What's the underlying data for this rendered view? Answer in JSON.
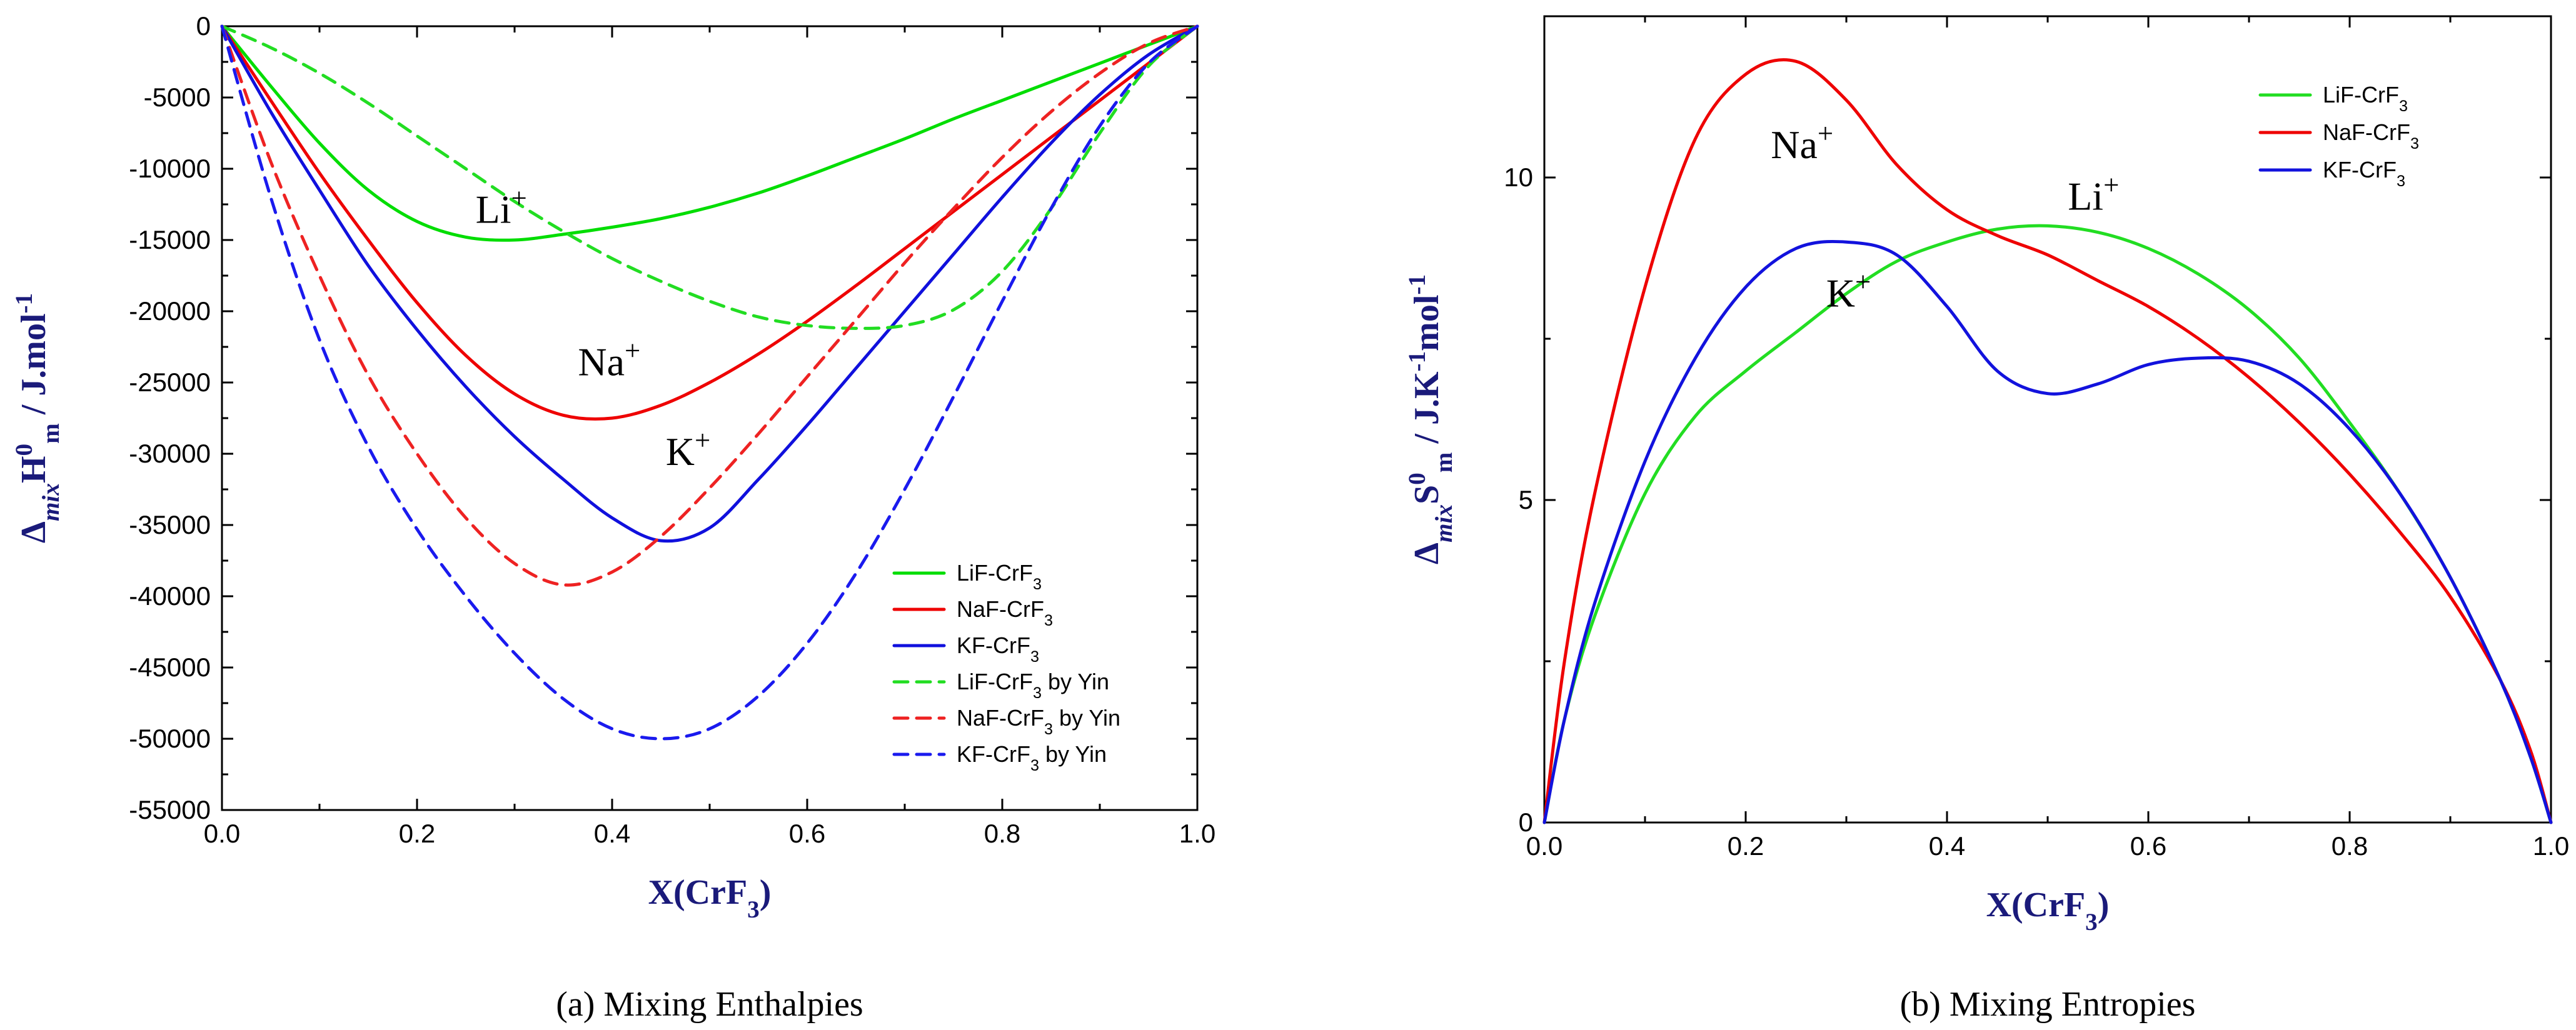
{
  "chart_data": [
    {
      "type": "line",
      "caption": "(a) Mixing Enthalpies",
      "xlabel": "X(CrF₃)",
      "ylabel": "Δ_mix H⁰_m / J.mol⁻¹",
      "xlim": [
        0.0,
        1.0
      ],
      "ylim": [
        -55000,
        0
      ],
      "xticks": [
        0.0,
        0.2,
        0.4,
        0.6,
        0.8,
        1.0
      ],
      "xtick_labels": [
        "0.0",
        "0.2",
        "0.4",
        "0.6",
        "0.8",
        "1.0"
      ],
      "yticks": [
        0,
        -5000,
        -10000,
        -15000,
        -20000,
        -25000,
        -30000,
        -35000,
        -40000,
        -45000,
        -50000,
        -55000
      ],
      "ytick_labels": [
        "0",
        "-5000",
        "-10000",
        "-15000",
        "-20000",
        "-25000",
        "-30000",
        "-35000",
        "-40000",
        "-45000",
        "-50000",
        "-55000"
      ],
      "legend_position": "bottom-right",
      "annotations": [
        {
          "text": "Li⁺",
          "x": 0.26,
          "y": -13800
        },
        {
          "text": "Na⁺",
          "x": 0.365,
          "y": -24500
        },
        {
          "text": "K⁺",
          "x": 0.455,
          "y": -30800
        }
      ],
      "series": [
        {
          "name": "LiF-CrF₃",
          "color": "#00dd00",
          "style": "solid",
          "x": [
            0,
            0.05,
            0.1,
            0.15,
            0.2,
            0.25,
            0.3,
            0.35,
            0.4,
            0.45,
            0.5,
            0.55,
            0.6,
            0.65,
            0.7,
            0.75,
            0.8,
            0.85,
            0.9,
            0.95,
            1.0
          ],
          "y": [
            0,
            -4200,
            -8200,
            -11500,
            -13700,
            -14800,
            -15000,
            -14600,
            -14100,
            -13500,
            -12700,
            -11700,
            -10500,
            -9200,
            -7900,
            -6500,
            -5200,
            -3900,
            -2600,
            -1300,
            0
          ]
        },
        {
          "name": "NaF-CrF₃",
          "color": "#ee0000",
          "style": "solid",
          "x": [
            0,
            0.05,
            0.1,
            0.15,
            0.2,
            0.25,
            0.3,
            0.35,
            0.4,
            0.45,
            0.5,
            0.55,
            0.6,
            0.65,
            0.7,
            0.75,
            0.8,
            0.85,
            0.9,
            0.95,
            1.0
          ],
          "y": [
            0,
            -5200,
            -10300,
            -15000,
            -19400,
            -23100,
            -25800,
            -27300,
            -27500,
            -26600,
            -25000,
            -23000,
            -20700,
            -18200,
            -15600,
            -13000,
            -10400,
            -7800,
            -5200,
            -2600,
            0
          ]
        },
        {
          "name": "KF-CrF₃",
          "color": "#1010dd",
          "style": "solid",
          "x": [
            0,
            0.05,
            0.1,
            0.15,
            0.2,
            0.25,
            0.3,
            0.35,
            0.4,
            0.45,
            0.5,
            0.55,
            0.6,
            0.65,
            0.7,
            0.75,
            0.8,
            0.85,
            0.9,
            0.95,
            1.0
          ],
          "y": [
            0,
            -6000,
            -11500,
            -16800,
            -21300,
            -25300,
            -28800,
            -31800,
            -34500,
            -36100,
            -35200,
            -31800,
            -28000,
            -24000,
            -20000,
            -16000,
            -12000,
            -8200,
            -4800,
            -2000,
            0
          ]
        },
        {
          "name": "LiF-CrF₃ by Yin",
          "color": "#22dd22",
          "style": "dashed",
          "x": [
            0,
            0.05,
            0.1,
            0.15,
            0.2,
            0.25,
            0.3,
            0.35,
            0.4,
            0.45,
            0.5,
            0.55,
            0.6,
            0.65,
            0.7,
            0.75,
            0.8,
            0.85,
            0.9,
            0.95,
            1.0
          ],
          "y": [
            0,
            -1500,
            -3300,
            -5400,
            -7700,
            -10000,
            -12300,
            -14400,
            -16300,
            -17900,
            -19300,
            -20400,
            -21000,
            -21200,
            -21000,
            -19900,
            -17200,
            -12800,
            -7500,
            -2800,
            0
          ]
        },
        {
          "name": "NaF-CrF₃ by Yin",
          "color": "#ee2222",
          "style": "dashed",
          "x": [
            0,
            0.05,
            0.1,
            0.15,
            0.2,
            0.25,
            0.3,
            0.35,
            0.4,
            0.45,
            0.5,
            0.55,
            0.6,
            0.65,
            0.7,
            0.75,
            0.8,
            0.85,
            0.9,
            0.95,
            1.0
          ],
          "y": [
            0,
            -9500,
            -17500,
            -24500,
            -30000,
            -34500,
            -37700,
            -39200,
            -38300,
            -35800,
            -32400,
            -28600,
            -24600,
            -20600,
            -16600,
            -12800,
            -9200,
            -6000,
            -3300,
            -1200,
            0
          ]
        },
        {
          "name": "KF-CrF₃ by Yin",
          "color": "#1a1aee",
          "style": "dashed",
          "x": [
            0,
            0.05,
            0.1,
            0.15,
            0.2,
            0.25,
            0.3,
            0.35,
            0.4,
            0.45,
            0.5,
            0.55,
            0.6,
            0.65,
            0.7,
            0.75,
            0.8,
            0.85,
            0.9,
            0.95,
            1.0
          ],
          "y": [
            0,
            -12000,
            -22000,
            -29500,
            -35300,
            -40000,
            -44000,
            -47200,
            -49300,
            -50000,
            -49300,
            -47000,
            -43300,
            -38400,
            -32500,
            -26000,
            -19300,
            -12800,
            -7000,
            -2600,
            0
          ]
        }
      ]
    },
    {
      "type": "line",
      "caption": "(b) Mixing Entropies",
      "xlabel": "X(CrF₃)",
      "ylabel": "Δ_mix S⁰_m / J.K⁻¹mol⁻¹",
      "xlim": [
        0.0,
        1.0
      ],
      "ylim": [
        0,
        12.5
      ],
      "xticks": [
        0.0,
        0.2,
        0.4,
        0.6,
        0.8,
        1.0
      ],
      "xtick_labels": [
        "0.0",
        "0.2",
        "0.4",
        "0.6",
        "0.8",
        "1.0"
      ],
      "yticks": [
        0,
        5,
        10
      ],
      "ytick_labels": [
        "0",
        "5",
        "10"
      ],
      "legend_position": "top-right",
      "annotations": [
        {
          "text": "Na⁺",
          "x": 0.225,
          "y": 10.3
        },
        {
          "text": "Li⁺",
          "x": 0.52,
          "y": 9.5
        },
        {
          "text": "K⁺",
          "x": 0.28,
          "y": 8.0
        }
      ],
      "series": [
        {
          "name": "LiF-CrF₃",
          "color": "#22dd22",
          "style": "solid",
          "x": [
            0,
            0.02,
            0.05,
            0.1,
            0.15,
            0.2,
            0.25,
            0.3,
            0.35,
            0.4,
            0.45,
            0.5,
            0.55,
            0.6,
            0.65,
            0.7,
            0.75,
            0.8,
            0.85,
            0.9,
            0.95,
            0.98,
            1.0
          ],
          "y": [
            0,
            1.6,
            3.2,
            5.1,
            6.3,
            7.0,
            7.6,
            8.2,
            8.7,
            9.0,
            9.2,
            9.25,
            9.15,
            8.9,
            8.5,
            7.95,
            7.2,
            6.2,
            5.1,
            3.8,
            2.2,
            1.0,
            0
          ]
        },
        {
          "name": "NaF-CrF₃",
          "color": "#ee0000",
          "style": "solid",
          "x": [
            0,
            0.02,
            0.05,
            0.1,
            0.15,
            0.2,
            0.25,
            0.3,
            0.35,
            0.4,
            0.45,
            0.5,
            0.55,
            0.6,
            0.65,
            0.7,
            0.75,
            0.8,
            0.85,
            0.9,
            0.95,
            0.98,
            1.0
          ],
          "y": [
            0,
            2.5,
            5.1,
            8.3,
            10.6,
            11.6,
            11.8,
            11.2,
            10.2,
            9.5,
            9.1,
            8.8,
            8.4,
            8.0,
            7.5,
            6.9,
            6.2,
            5.4,
            4.5,
            3.5,
            2.2,
            1.1,
            0
          ]
        },
        {
          "name": "KF-CrF₃",
          "color": "#1212dd",
          "style": "solid",
          "x": [
            0,
            0.02,
            0.05,
            0.1,
            0.15,
            0.2,
            0.25,
            0.3,
            0.35,
            0.4,
            0.45,
            0.5,
            0.55,
            0.6,
            0.65,
            0.7,
            0.75,
            0.8,
            0.85,
            0.9,
            0.95,
            0.98,
            1.0
          ],
          "y": [
            0,
            1.6,
            3.4,
            5.6,
            7.2,
            8.3,
            8.9,
            9.0,
            8.8,
            8.0,
            7.0,
            6.65,
            6.8,
            7.1,
            7.2,
            7.15,
            6.8,
            6.1,
            5.1,
            3.8,
            2.2,
            1.0,
            0
          ]
        }
      ]
    }
  ]
}
